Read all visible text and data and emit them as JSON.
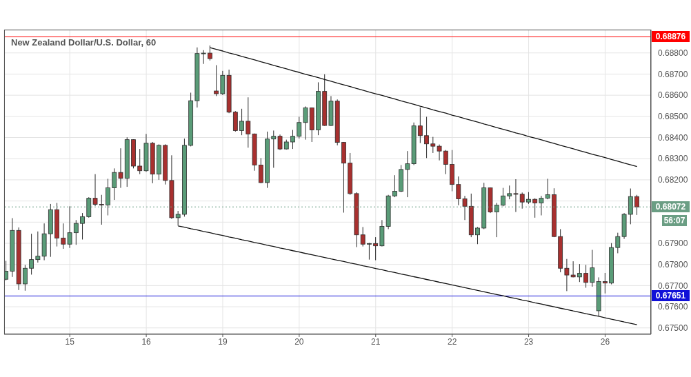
{
  "chart_data": {
    "type": "candlestick",
    "title": "New Zealand Dollar/U.S. Dollar, 60",
    "categories": [
      null,
      null,
      null,
      null,
      null,
      null,
      null,
      null,
      null,
      null,
      "15",
      null,
      null,
      null,
      null,
      null,
      null,
      null,
      null,
      null,
      null,
      null,
      "16",
      null,
      null,
      null,
      null,
      null,
      null,
      null,
      null,
      null,
      null,
      null,
      "19",
      null,
      null,
      null,
      null,
      null,
      null,
      null,
      null,
      null,
      null,
      null,
      "20",
      null,
      null,
      null,
      null,
      null,
      null,
      null,
      null,
      null,
      null,
      null,
      "21",
      null,
      null,
      null,
      null,
      null,
      null,
      null,
      null,
      null,
      null,
      null,
      "22",
      null,
      null,
      null,
      null,
      null,
      null,
      null,
      null,
      null,
      null,
      null,
      "23",
      null,
      null,
      null,
      null,
      null,
      null,
      null,
      null,
      null,
      null,
      null,
      "26",
      null,
      null,
      null,
      null,
      null
    ],
    "ohlc": [
      [
        0.6773,
        0.67817,
        0.67725,
        0.67768
      ],
      [
        0.67768,
        0.68019,
        0.67741,
        0.67961
      ],
      [
        0.67961,
        0.67975,
        0.67679,
        0.67708
      ],
      [
        0.67708,
        0.67798,
        0.67676,
        0.67782
      ],
      [
        0.67782,
        0.67945,
        0.67752,
        0.67823
      ],
      [
        0.67823,
        0.67956,
        0.67809,
        0.67839
      ],
      [
        0.67839,
        0.67994,
        0.6782,
        0.67945
      ],
      [
        0.67945,
        0.68086,
        0.67836,
        0.68059
      ],
      [
        0.68059,
        0.68091,
        0.67885,
        0.67925
      ],
      [
        0.67925,
        0.67994,
        0.67874,
        0.67896
      ],
      [
        0.67896,
        0.68075,
        0.67878,
        0.6795
      ],
      [
        0.6795,
        0.6801,
        0.67893,
        0.67994
      ],
      [
        0.67994,
        0.68043,
        0.67918,
        0.68026
      ],
      [
        0.68026,
        0.68118,
        0.68021,
        0.68113
      ],
      [
        0.68113,
        0.68227,
        0.68076,
        0.68084
      ],
      [
        0.68084,
        0.68129,
        0.67988,
        0.68081
      ],
      [
        0.68081,
        0.68205,
        0.68032,
        0.68162
      ],
      [
        0.68162,
        0.68254,
        0.68105,
        0.68235
      ],
      [
        0.68235,
        0.68349,
        0.68162,
        0.68207
      ],
      [
        0.68207,
        0.68401,
        0.68167,
        0.6839
      ],
      [
        0.6839,
        0.68392,
        0.68254,
        0.68265
      ],
      [
        0.68265,
        0.68346,
        0.68227,
        0.68243
      ],
      [
        0.68243,
        0.68417,
        0.68238,
        0.68373
      ],
      [
        0.68373,
        0.68379,
        0.68184,
        0.68227
      ],
      [
        0.68227,
        0.68368,
        0.682,
        0.68363
      ],
      [
        0.68363,
        0.68368,
        0.68178,
        0.68197
      ],
      [
        0.68197,
        0.68316,
        0.68015,
        0.68021
      ],
      [
        0.68021,
        0.68053,
        0.67983,
        0.68037
      ],
      [
        0.68037,
        0.68395,
        0.68026,
        0.68363
      ],
      [
        0.68363,
        0.68612,
        0.68358,
        0.68574
      ],
      [
        0.68574,
        0.68826,
        0.68542,
        0.68797
      ],
      [
        0.68797,
        0.68813,
        0.68748,
        0.68799
      ],
      [
        0.68799,
        0.68835,
        0.68764,
        0.68773
      ],
      [
        0.6862,
        0.68742,
        0.68596,
        0.68607
      ],
      [
        0.68607,
        0.68715,
        0.68601,
        0.68694
      ],
      [
        0.68694,
        0.68721,
        0.68515,
        0.6852
      ],
      [
        0.6852,
        0.68525,
        0.68428,
        0.68433
      ],
      [
        0.68433,
        0.68536,
        0.68411,
        0.68477
      ],
      [
        0.68477,
        0.6859,
        0.68352,
        0.68417
      ],
      [
        0.68417,
        0.68419,
        0.68243,
        0.6827
      ],
      [
        0.6827,
        0.68303,
        0.68184,
        0.68187
      ],
      [
        0.68187,
        0.68428,
        0.68162,
        0.68393
      ],
      [
        0.68393,
        0.68433,
        0.68257,
        0.68406
      ],
      [
        0.68406,
        0.68414,
        0.68341,
        0.68346
      ],
      [
        0.68346,
        0.6839,
        0.68343,
        0.68379
      ],
      [
        0.68379,
        0.68436,
        0.68346,
        0.68406
      ],
      [
        0.68406,
        0.68498,
        0.68395,
        0.68471
      ],
      [
        0.68471,
        0.68547,
        0.6839,
        0.6854
      ],
      [
        0.6854,
        0.68542,
        0.68379,
        0.68436
      ],
      [
        0.68436,
        0.68661,
        0.68411,
        0.68618
      ],
      [
        0.68618,
        0.68699,
        0.68455,
        0.68457
      ],
      [
        0.68457,
        0.68596,
        0.68455,
        0.68572
      ],
      [
        0.68572,
        0.6858,
        0.68363,
        0.68377
      ],
      [
        0.68377,
        0.68379,
        0.68045,
        0.68279
      ],
      [
        0.68279,
        0.68327,
        0.68129,
        0.68135
      ],
      [
        0.68135,
        0.68141,
        0.67882,
        0.6794
      ],
      [
        0.6794,
        0.67977,
        0.67885,
        0.67896
      ],
      [
        0.67896,
        0.67902,
        0.67823,
        0.67899
      ],
      [
        0.67899,
        0.67929,
        0.6782,
        0.67888
      ],
      [
        0.67888,
        0.6801,
        0.67885,
        0.6798
      ],
      [
        0.6798,
        0.68129,
        0.67967,
        0.68124
      ],
      [
        0.68124,
        0.68222,
        0.68118,
        0.68146
      ],
      [
        0.68146,
        0.6827,
        0.68142,
        0.68249
      ],
      [
        0.68249,
        0.68336,
        0.68118,
        0.68276
      ],
      [
        0.68276,
        0.68471,
        0.6827,
        0.68455
      ],
      [
        0.68455,
        0.68542,
        0.68374,
        0.68409
      ],
      [
        0.68409,
        0.68498,
        0.68303,
        0.6837
      ],
      [
        0.6837,
        0.68403,
        0.68327,
        0.68359
      ],
      [
        0.68359,
        0.68367,
        0.68292,
        0.68336
      ],
      [
        0.68336,
        0.68341,
        0.68227,
        0.68273
      ],
      [
        0.68273,
        0.68341,
        0.68146,
        0.68178
      ],
      [
        0.68178,
        0.68216,
        0.6808,
        0.6811
      ],
      [
        0.6811,
        0.68124,
        0.6801,
        0.68075
      ],
      [
        0.68075,
        0.68135,
        0.67929,
        0.6794
      ],
      [
        0.6794,
        0.67977,
        0.67896,
        0.67972
      ],
      [
        0.67972,
        0.68186,
        0.67967,
        0.68162
      ],
      [
        0.68162,
        0.68164,
        0.68043,
        0.68048
      ],
      [
        0.68048,
        0.68091,
        0.67929,
        0.6808
      ],
      [
        0.6808,
        0.68162,
        0.68075,
        0.68124
      ],
      [
        0.68124,
        0.68173,
        0.68108,
        0.68135
      ],
      [
        0.68135,
        0.68203,
        0.68048,
        0.68132
      ],
      [
        0.68132,
        0.6814,
        0.68064,
        0.68095
      ],
      [
        0.68095,
        0.68142,
        0.68086,
        0.68108
      ],
      [
        0.68108,
        0.68113,
        0.68021,
        0.68091
      ],
      [
        0.68091,
        0.68124,
        0.68032,
        0.68113
      ],
      [
        0.68113,
        0.68205,
        0.68108,
        0.6813
      ],
      [
        0.6813,
        0.6816,
        0.67929,
        0.67932
      ],
      [
        0.67932,
        0.67967,
        0.67763,
        0.67782
      ],
      [
        0.67782,
        0.67826,
        0.67674,
        0.6775
      ],
      [
        0.6775,
        0.67815,
        0.67739,
        0.67741
      ],
      [
        0.67741,
        0.67802,
        0.67717,
        0.67758
      ],
      [
        0.67758,
        0.67798,
        0.6769,
        0.67715
      ],
      [
        0.67715,
        0.67869,
        0.67695,
        0.67784
      ],
      [
        0.67581,
        0.67739,
        0.67554,
        0.67719
      ],
      [
        0.67719,
        0.6776,
        0.67663,
        0.67712
      ],
      [
        0.67712,
        0.67901,
        0.67706,
        0.6788
      ],
      [
        0.6788,
        0.6795,
        0.67853,
        0.67932
      ],
      [
        0.67932,
        0.68043,
        0.67921,
        0.68037
      ],
      [
        0.68037,
        0.68159,
        0.6799,
        0.68121
      ],
      [
        0.68121,
        0.68129,
        0.68034,
        0.68072
      ]
    ],
    "colors": [
      "#5a9c78",
      "#5a9c78",
      "#a8302f",
      "#5a9c78",
      "#5a9c78",
      "#5a9c78",
      "#5a9c78",
      "#5a9c78",
      "#a8302f",
      "#a8302f",
      "#5a9c78",
      "#5a9c78",
      "#5a9c78",
      "#5a9c78",
      "#a8302f",
      "#a8302f",
      "#5a9c78",
      "#5a9c78",
      "#a8302f",
      "#5a9c78",
      "#a8302f",
      "#a8302f",
      "#5a9c78",
      "#a8302f",
      "#5a9c78",
      "#a8302f",
      "#a8302f",
      "#5a9c78",
      "#5a9c78",
      "#5a9c78",
      "#5a9c78",
      "#5a9c78",
      "#a8302f",
      "#a8302f",
      "#5a9c78",
      "#a8302f",
      "#a8302f",
      "#5a9c78",
      "#a8302f",
      "#a8302f",
      "#a8302f",
      "#5a9c78",
      "#5a9c78",
      "#a8302f",
      "#5a9c78",
      "#5a9c78",
      "#5a9c78",
      "#5a9c78",
      "#a8302f",
      "#5a9c78",
      "#a8302f",
      "#5a9c78",
      "#a8302f",
      "#a8302f",
      "#a8302f",
      "#a8302f",
      "#a8302f",
      "#5a9c78",
      "#a8302f",
      "#5a9c78",
      "#5a9c78",
      "#5a9c78",
      "#5a9c78",
      "#5a9c78",
      "#5a9c78",
      "#a8302f",
      "#a8302f",
      "#a8302f",
      "#a8302f",
      "#a8302f",
      "#a8302f",
      "#a8302f",
      "#a8302f",
      "#a8302f",
      "#5a9c78",
      "#5a9c78",
      "#a8302f",
      "#5a9c78",
      "#5a9c78",
      "#5a9c78",
      "#a8302f",
      "#a8302f",
      "#5a9c78",
      "#a8302f",
      "#5a9c78",
      "#5a9c78",
      "#a8302f",
      "#a8302f",
      "#a8302f",
      "#a8302f",
      "#5a9c78",
      "#a8302f",
      "#5a9c78",
      "#5a9c78",
      "#a8302f",
      "#5a9c78",
      "#5a9c78",
      "#5a9c78",
      "#5a9c78",
      "#a8302f"
    ],
    "series": [
      {
        "type": "line",
        "color": "#111111",
        "values": [
          null,
          null,
          null,
          null,
          null,
          null,
          null,
          null,
          null,
          null,
          null,
          null,
          null,
          null,
          null,
          null,
          null,
          null,
          null,
          null,
          null,
          null,
          null,
          null,
          null,
          null,
          null,
          null,
          null,
          null,
          null,
          null,
          0.68825,
          0.68817,
          0.68809,
          0.688,
          0.68792,
          0.68783,
          0.68775,
          0.68767,
          0.68758,
          0.6875,
          0.68741,
          0.68733,
          0.68725,
          0.68716,
          0.68708,
          0.68699,
          0.68691,
          0.68683,
          0.68674,
          0.68666,
          0.68657,
          0.68649,
          0.68641,
          0.68632,
          0.68624,
          0.68615,
          0.68607,
          0.68599,
          0.6859,
          0.68582,
          0.68573,
          0.68565,
          0.68557,
          0.68548,
          0.6854,
          0.68531,
          0.68523,
          0.68515,
          0.68506,
          0.68498,
          0.68489,
          0.68481,
          0.68473,
          0.68464,
          0.68456,
          0.68447,
          0.68439,
          0.68431,
          0.68422,
          0.68414,
          0.68405,
          0.68397,
          0.68389,
          0.6838,
          0.68372,
          0.68363,
          0.68355,
          0.68347,
          0.68338,
          0.6833,
          0.68321,
          0.68313,
          0.68305,
          0.68296,
          0.68288,
          0.68279,
          0.68271,
          0.68263
        ]
      },
      {
        "type": "line",
        "color": "#111111",
        "values": [
          null,
          null,
          null,
          null,
          null,
          null,
          null,
          null,
          null,
          null,
          null,
          null,
          null,
          null,
          null,
          null,
          null,
          null,
          null,
          null,
          null,
          null,
          null,
          null,
          null,
          null,
          null,
          0.67982,
          0.67976,
          0.67969,
          0.67963,
          0.67956,
          0.6795,
          0.67943,
          0.67937,
          0.6793,
          0.67924,
          0.67917,
          0.67911,
          0.67904,
          0.67898,
          0.67891,
          0.67885,
          0.67878,
          0.67872,
          0.67865,
          0.67859,
          0.67852,
          0.67846,
          0.67839,
          0.67833,
          0.67826,
          0.6782,
          0.67814,
          0.67807,
          0.67801,
          0.67794,
          0.67788,
          0.67781,
          0.67775,
          0.67768,
          0.67762,
          0.67755,
          0.67749,
          0.67742,
          0.67736,
          0.67729,
          0.67723,
          0.67716,
          0.6771,
          0.67703,
          0.67697,
          0.6769,
          0.67684,
          0.67677,
          0.67671,
          0.67664,
          0.67658,
          0.67652,
          0.67645,
          0.67639,
          0.67632,
          0.67626,
          0.67619,
          0.67613,
          0.67606,
          0.676,
          0.67593,
          0.67587,
          0.6758,
          0.67574,
          0.67567,
          0.67561,
          0.67555,
          0.67548,
          0.67541,
          0.67535,
          0.67528,
          0.67522,
          0.67515
        ]
      }
    ],
    "ylim": [
      0.6747,
      0.6891
    ],
    "yticks": [
      {
        "value": 0.675,
        "label": "0.67500"
      },
      {
        "value": 0.676,
        "label": "0.67600"
      },
      {
        "value": 0.677,
        "label": "0.67700"
      },
      {
        "value": 0.678,
        "label": "0.67800"
      },
      {
        "value": 0.679,
        "label": "0.67900"
      },
      {
        "value": 0.68,
        "label": null
      },
      {
        "value": 0.681,
        "label": null
      },
      {
        "value": 0.682,
        "label": "0.68200"
      },
      {
        "value": 0.683,
        "label": "0.68300"
      },
      {
        "value": 0.684,
        "label": "0.68400"
      },
      {
        "value": 0.685,
        "label": "0.68500"
      },
      {
        "value": 0.686,
        "label": "0.68600"
      },
      {
        "value": 0.687,
        "label": "0.68700"
      },
      {
        "value": 0.688,
        "label": "0.68800"
      }
    ],
    "grid": true,
    "ref_lines": [
      {
        "axis": "y",
        "value": 0.68876,
        "label": "0.68876",
        "color": "#ff0000"
      },
      {
        "axis": "y",
        "value": 0.67651,
        "label": "0.67651",
        "color": "#1010d8"
      },
      {
        "axis": "y",
        "value": 0.68072,
        "label": "0.68072",
        "color": "#6b9e84",
        "line_style": "dotted"
      }
    ],
    "annotations": [
      "56:07"
    ]
  }
}
